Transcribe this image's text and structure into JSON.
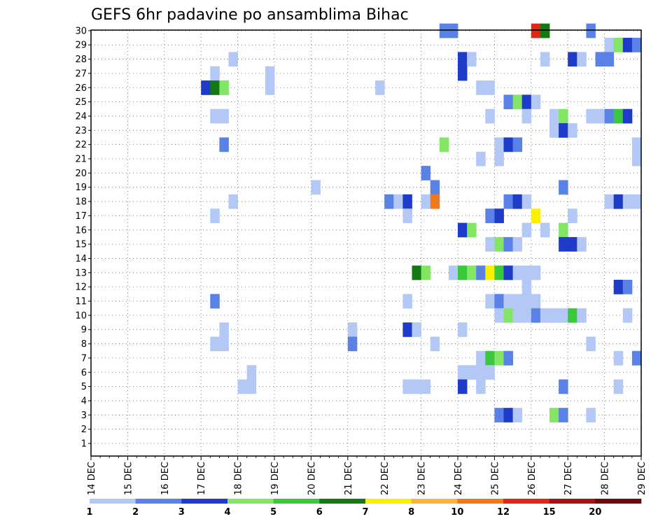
{
  "chart_data": {
    "type": "heatmap",
    "title": "GEFS 6hr padavine po ansamblima Bihac",
    "xlabel": "",
    "ylabel": "",
    "x_unit": "day",
    "x_start": 14,
    "x_end": 29,
    "x_tick_labels": [
      "14 DEC",
      "15 DEC",
      "16 DEC",
      "17 DEC",
      "18 DEC",
      "19 DEC",
      "20 DEC",
      "21 DEC",
      "22 DEC",
      "23 DEC",
      "24 DEC",
      "25 DEC",
      "26 DEC",
      "27 DEC",
      "28 DEC",
      "29 DEC"
    ],
    "y_tick_labels": [
      "1",
      "2",
      "3",
      "4",
      "5",
      "6",
      "7",
      "8",
      "9",
      "10",
      "11",
      "12",
      "13",
      "14",
      "15",
      "16",
      "17",
      "18",
      "19",
      "20",
      "21",
      "22",
      "23",
      "24",
      "25",
      "26",
      "27",
      "28",
      "29",
      "30"
    ],
    "ylim": [
      1,
      30
    ],
    "grid": true,
    "cell_width_days": 0.25,
    "colorbar": {
      "labels": [
        "1",
        "2",
        "3",
        "4",
        "5",
        "6",
        "7",
        "8",
        "10",
        "12",
        "15",
        "20"
      ],
      "colors": [
        "#b4c8f5",
        "#5a82e6",
        "#1e3cc8",
        "#82e664",
        "#3cc83c",
        "#147814",
        "#faf000",
        "#fab43c",
        "#f0781e",
        "#dc2814",
        "#a01414",
        "#6e0a0a"
      ]
    },
    "cells": [
      [
        23.5,
        30,
        2
      ],
      [
        23.75,
        30,
        2
      ],
      [
        26.0,
        30,
        10
      ],
      [
        26.25,
        30,
        6
      ],
      [
        27.5,
        30,
        2
      ],
      [
        28.0,
        29,
        1
      ],
      [
        28.25,
        29,
        4
      ],
      [
        28.5,
        29,
        3
      ],
      [
        28.75,
        29,
        2
      ],
      [
        17.75,
        28,
        1
      ],
      [
        24.0,
        28,
        3
      ],
      [
        24.25,
        28,
        1
      ],
      [
        26.25,
        28,
        1
      ],
      [
        27.0,
        28,
        3
      ],
      [
        27.25,
        28,
        1
      ],
      [
        27.75,
        28,
        2
      ],
      [
        28.0,
        28,
        2
      ],
      [
        17.25,
        27,
        1
      ],
      [
        18.75,
        27,
        1
      ],
      [
        24.0,
        27,
        3
      ],
      [
        17.0,
        26,
        3
      ],
      [
        17.25,
        26,
        6
      ],
      [
        17.5,
        26,
        4
      ],
      [
        18.75,
        26,
        1
      ],
      [
        21.75,
        26,
        1
      ],
      [
        24.5,
        26,
        1
      ],
      [
        24.75,
        26,
        1
      ],
      [
        25.25,
        25,
        2
      ],
      [
        25.5,
        25,
        4
      ],
      [
        25.75,
        25,
        3
      ],
      [
        26.0,
        25,
        1
      ],
      [
        17.25,
        24,
        1
      ],
      [
        17.5,
        24,
        1
      ],
      [
        24.75,
        24,
        1
      ],
      [
        25.75,
        24,
        1
      ],
      [
        26.5,
        24,
        1
      ],
      [
        26.75,
        24,
        4
      ],
      [
        27.5,
        24,
        1
      ],
      [
        27.75,
        24,
        1
      ],
      [
        28.0,
        24,
        2
      ],
      [
        28.25,
        24,
        5
      ],
      [
        28.5,
        24,
        3
      ],
      [
        26.5,
        23,
        1
      ],
      [
        26.75,
        23,
        3
      ],
      [
        27.0,
        23,
        1
      ],
      [
        17.5,
        22,
        2
      ],
      [
        23.5,
        22,
        4
      ],
      [
        25.0,
        22,
        1
      ],
      [
        25.25,
        22,
        3
      ],
      [
        25.5,
        22,
        2
      ],
      [
        28.75,
        22,
        1
      ],
      [
        24.5,
        21,
        1
      ],
      [
        25.0,
        21,
        1
      ],
      [
        28.75,
        21,
        1
      ],
      [
        23.0,
        20,
        2
      ],
      [
        20.0,
        19,
        1
      ],
      [
        23.25,
        19,
        2
      ],
      [
        26.75,
        19,
        2
      ],
      [
        17.75,
        18,
        1
      ],
      [
        22.0,
        18,
        2
      ],
      [
        22.25,
        18,
        1
      ],
      [
        22.5,
        18,
        3
      ],
      [
        23.0,
        18,
        1
      ],
      [
        23.25,
        18,
        9
      ],
      [
        25.25,
        18,
        2
      ],
      [
        25.5,
        18,
        3
      ],
      [
        25.75,
        18,
        1
      ],
      [
        28.0,
        18,
        1
      ],
      [
        28.25,
        18,
        3
      ],
      [
        28.5,
        18,
        1
      ],
      [
        28.75,
        18,
        1
      ],
      [
        17.25,
        17,
        1
      ],
      [
        22.5,
        17,
        1
      ],
      [
        24.75,
        17,
        2
      ],
      [
        25.0,
        17,
        3
      ],
      [
        26.0,
        17,
        7
      ],
      [
        27.0,
        17,
        1
      ],
      [
        24.0,
        16,
        3
      ],
      [
        24.25,
        16,
        4
      ],
      [
        25.75,
        16,
        1
      ],
      [
        26.25,
        16,
        1
      ],
      [
        26.75,
        16,
        4
      ],
      [
        24.75,
        15,
        1
      ],
      [
        25.0,
        15,
        4
      ],
      [
        25.25,
        15,
        2
      ],
      [
        25.5,
        15,
        1
      ],
      [
        26.75,
        15,
        3
      ],
      [
        27.0,
        15,
        3
      ],
      [
        27.25,
        15,
        1
      ],
      [
        22.75,
        13,
        6
      ],
      [
        23.0,
        13,
        4
      ],
      [
        23.75,
        13,
        1
      ],
      [
        24.0,
        13,
        5
      ],
      [
        24.25,
        13,
        4
      ],
      [
        24.5,
        13,
        2
      ],
      [
        24.75,
        13,
        7
      ],
      [
        25.0,
        13,
        5
      ],
      [
        25.25,
        13,
        3
      ],
      [
        25.5,
        13,
        1
      ],
      [
        25.75,
        13,
        1
      ],
      [
        26.0,
        13,
        1
      ],
      [
        25.75,
        12,
        1
      ],
      [
        28.25,
        12,
        3
      ],
      [
        28.5,
        12,
        2
      ],
      [
        17.25,
        11,
        2
      ],
      [
        22.5,
        11,
        1
      ],
      [
        24.75,
        11,
        1
      ],
      [
        25.0,
        11,
        2
      ],
      [
        25.25,
        11,
        1
      ],
      [
        25.5,
        11,
        1
      ],
      [
        25.75,
        11,
        1
      ],
      [
        26.0,
        11,
        1
      ],
      [
        25.0,
        10,
        1
      ],
      [
        25.25,
        10,
        4
      ],
      [
        25.5,
        10,
        1
      ],
      [
        25.75,
        10,
        1
      ],
      [
        26.0,
        10,
        2
      ],
      [
        26.25,
        10,
        1
      ],
      [
        26.5,
        10,
        1
      ],
      [
        26.75,
        10,
        1
      ],
      [
        27.0,
        10,
        5
      ],
      [
        27.25,
        10,
        1
      ],
      [
        28.5,
        10,
        1
      ],
      [
        17.5,
        9,
        1
      ],
      [
        21.0,
        9,
        1
      ],
      [
        22.5,
        9,
        3
      ],
      [
        22.75,
        9,
        1
      ],
      [
        24.0,
        9,
        1
      ],
      [
        17.25,
        8,
        1
      ],
      [
        17.5,
        8,
        1
      ],
      [
        21.0,
        8,
        2
      ],
      [
        23.25,
        8,
        1
      ],
      [
        27.5,
        8,
        1
      ],
      [
        24.5,
        7,
        1
      ],
      [
        24.75,
        7,
        5
      ],
      [
        25.0,
        7,
        4
      ],
      [
        25.25,
        7,
        2
      ],
      [
        28.25,
        7,
        1
      ],
      [
        28.75,
        7,
        2
      ],
      [
        18.25,
        6,
        1
      ],
      [
        24.0,
        6,
        1
      ],
      [
        24.25,
        6,
        1
      ],
      [
        24.5,
        6,
        1
      ],
      [
        24.75,
        6,
        1
      ],
      [
        18.0,
        5,
        1
      ],
      [
        18.25,
        5,
        1
      ],
      [
        22.5,
        5,
        1
      ],
      [
        22.75,
        5,
        1
      ],
      [
        23.0,
        5,
        1
      ],
      [
        24.0,
        5,
        3
      ],
      [
        24.5,
        5,
        1
      ],
      [
        26.75,
        5,
        2
      ],
      [
        28.25,
        5,
        1
      ],
      [
        25.0,
        3,
        2
      ],
      [
        25.25,
        3,
        3
      ],
      [
        25.5,
        3,
        1
      ],
      [
        26.5,
        3,
        4
      ],
      [
        26.75,
        3,
        2
      ],
      [
        27.5,
        3,
        1
      ]
    ]
  }
}
